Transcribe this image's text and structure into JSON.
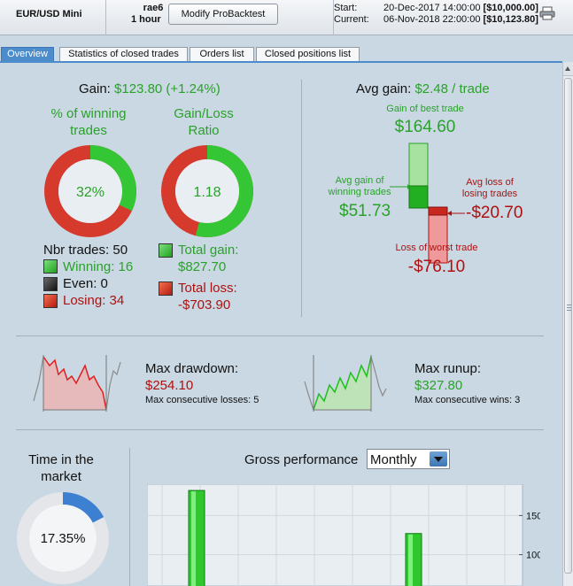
{
  "header": {
    "instrument": "EUR/USD Mini",
    "system_name": "rae6",
    "timeframe": "1 hour",
    "modify_button": "Modify ProBacktest",
    "start_label": "Start:",
    "start_date": "20-Dec-2017 14:00:00",
    "start_capital": "[$10,000.00]",
    "current_label": "Current:",
    "current_date": "06-Nov-2018 22:00:00",
    "current_capital": "[$10,123.80]",
    "print_icon": "printer-icon"
  },
  "tabs": [
    {
      "label": "Overview",
      "active": true
    },
    {
      "label": "Statistics of closed trades",
      "active": false
    },
    {
      "label": "Orders list",
      "active": false
    },
    {
      "label": "Closed positions list",
      "active": false
    }
  ],
  "gain": {
    "label": "Gain:",
    "value": "$123.80 (+1.24%)"
  },
  "winning": {
    "title_line1": "% of winning",
    "title_line2": "trades",
    "value": "32%",
    "fraction": 0.32
  },
  "ratio": {
    "title_line1": "Gain/Loss",
    "title_line2": "Ratio",
    "value": "1.18",
    "fraction": 0.54
  },
  "trades": {
    "nbr_label": "Nbr trades: 50",
    "winning_label": "Winning: 16",
    "even_label": "Even: 0",
    "losing_label": "Losing: 34"
  },
  "totals": {
    "gain_label": "Total gain:",
    "gain_value": "$827.70",
    "loss_label": "Total loss:",
    "loss_value": "-$703.90"
  },
  "avg": {
    "label": "Avg gain:",
    "value": "$2.48 / trade",
    "best_label": "Gain of best trade",
    "best_value": "$164.60",
    "avg_gain_line1": "Avg gain of",
    "avg_gain_line2": "winning trades",
    "avg_gain_value": "$51.73",
    "avg_loss_line1": "Avg loss of",
    "avg_loss_line2": "losing trades",
    "avg_loss_value": "-$20.70",
    "worst_label": "Loss of worst trade",
    "worst_value": "-$76.10"
  },
  "drawdown": {
    "label": "Max drawdown:",
    "value": "$254.10",
    "consecutive": "Max consecutive losses: 5"
  },
  "runup": {
    "label": "Max runup:",
    "value": "$327.80",
    "consecutive": "Max consecutive wins: 3"
  },
  "market": {
    "title_line1": "Time in the",
    "title_line2": "market",
    "value": "17.35%",
    "fraction": 0.1735
  },
  "gross": {
    "title": "Gross performance",
    "period_select": "Monthly"
  },
  "colors": {
    "gain": "#2aa12a",
    "loss": "#b01010",
    "accent": "#4d8ccb"
  },
  "chart_data": {
    "type": "bar",
    "title": "Gross performance",
    "y_ticks": [
      150,
      100
    ],
    "ylim": [
      60,
      190
    ],
    "series": [
      {
        "values": [
          182,
          127
        ]
      }
    ]
  }
}
